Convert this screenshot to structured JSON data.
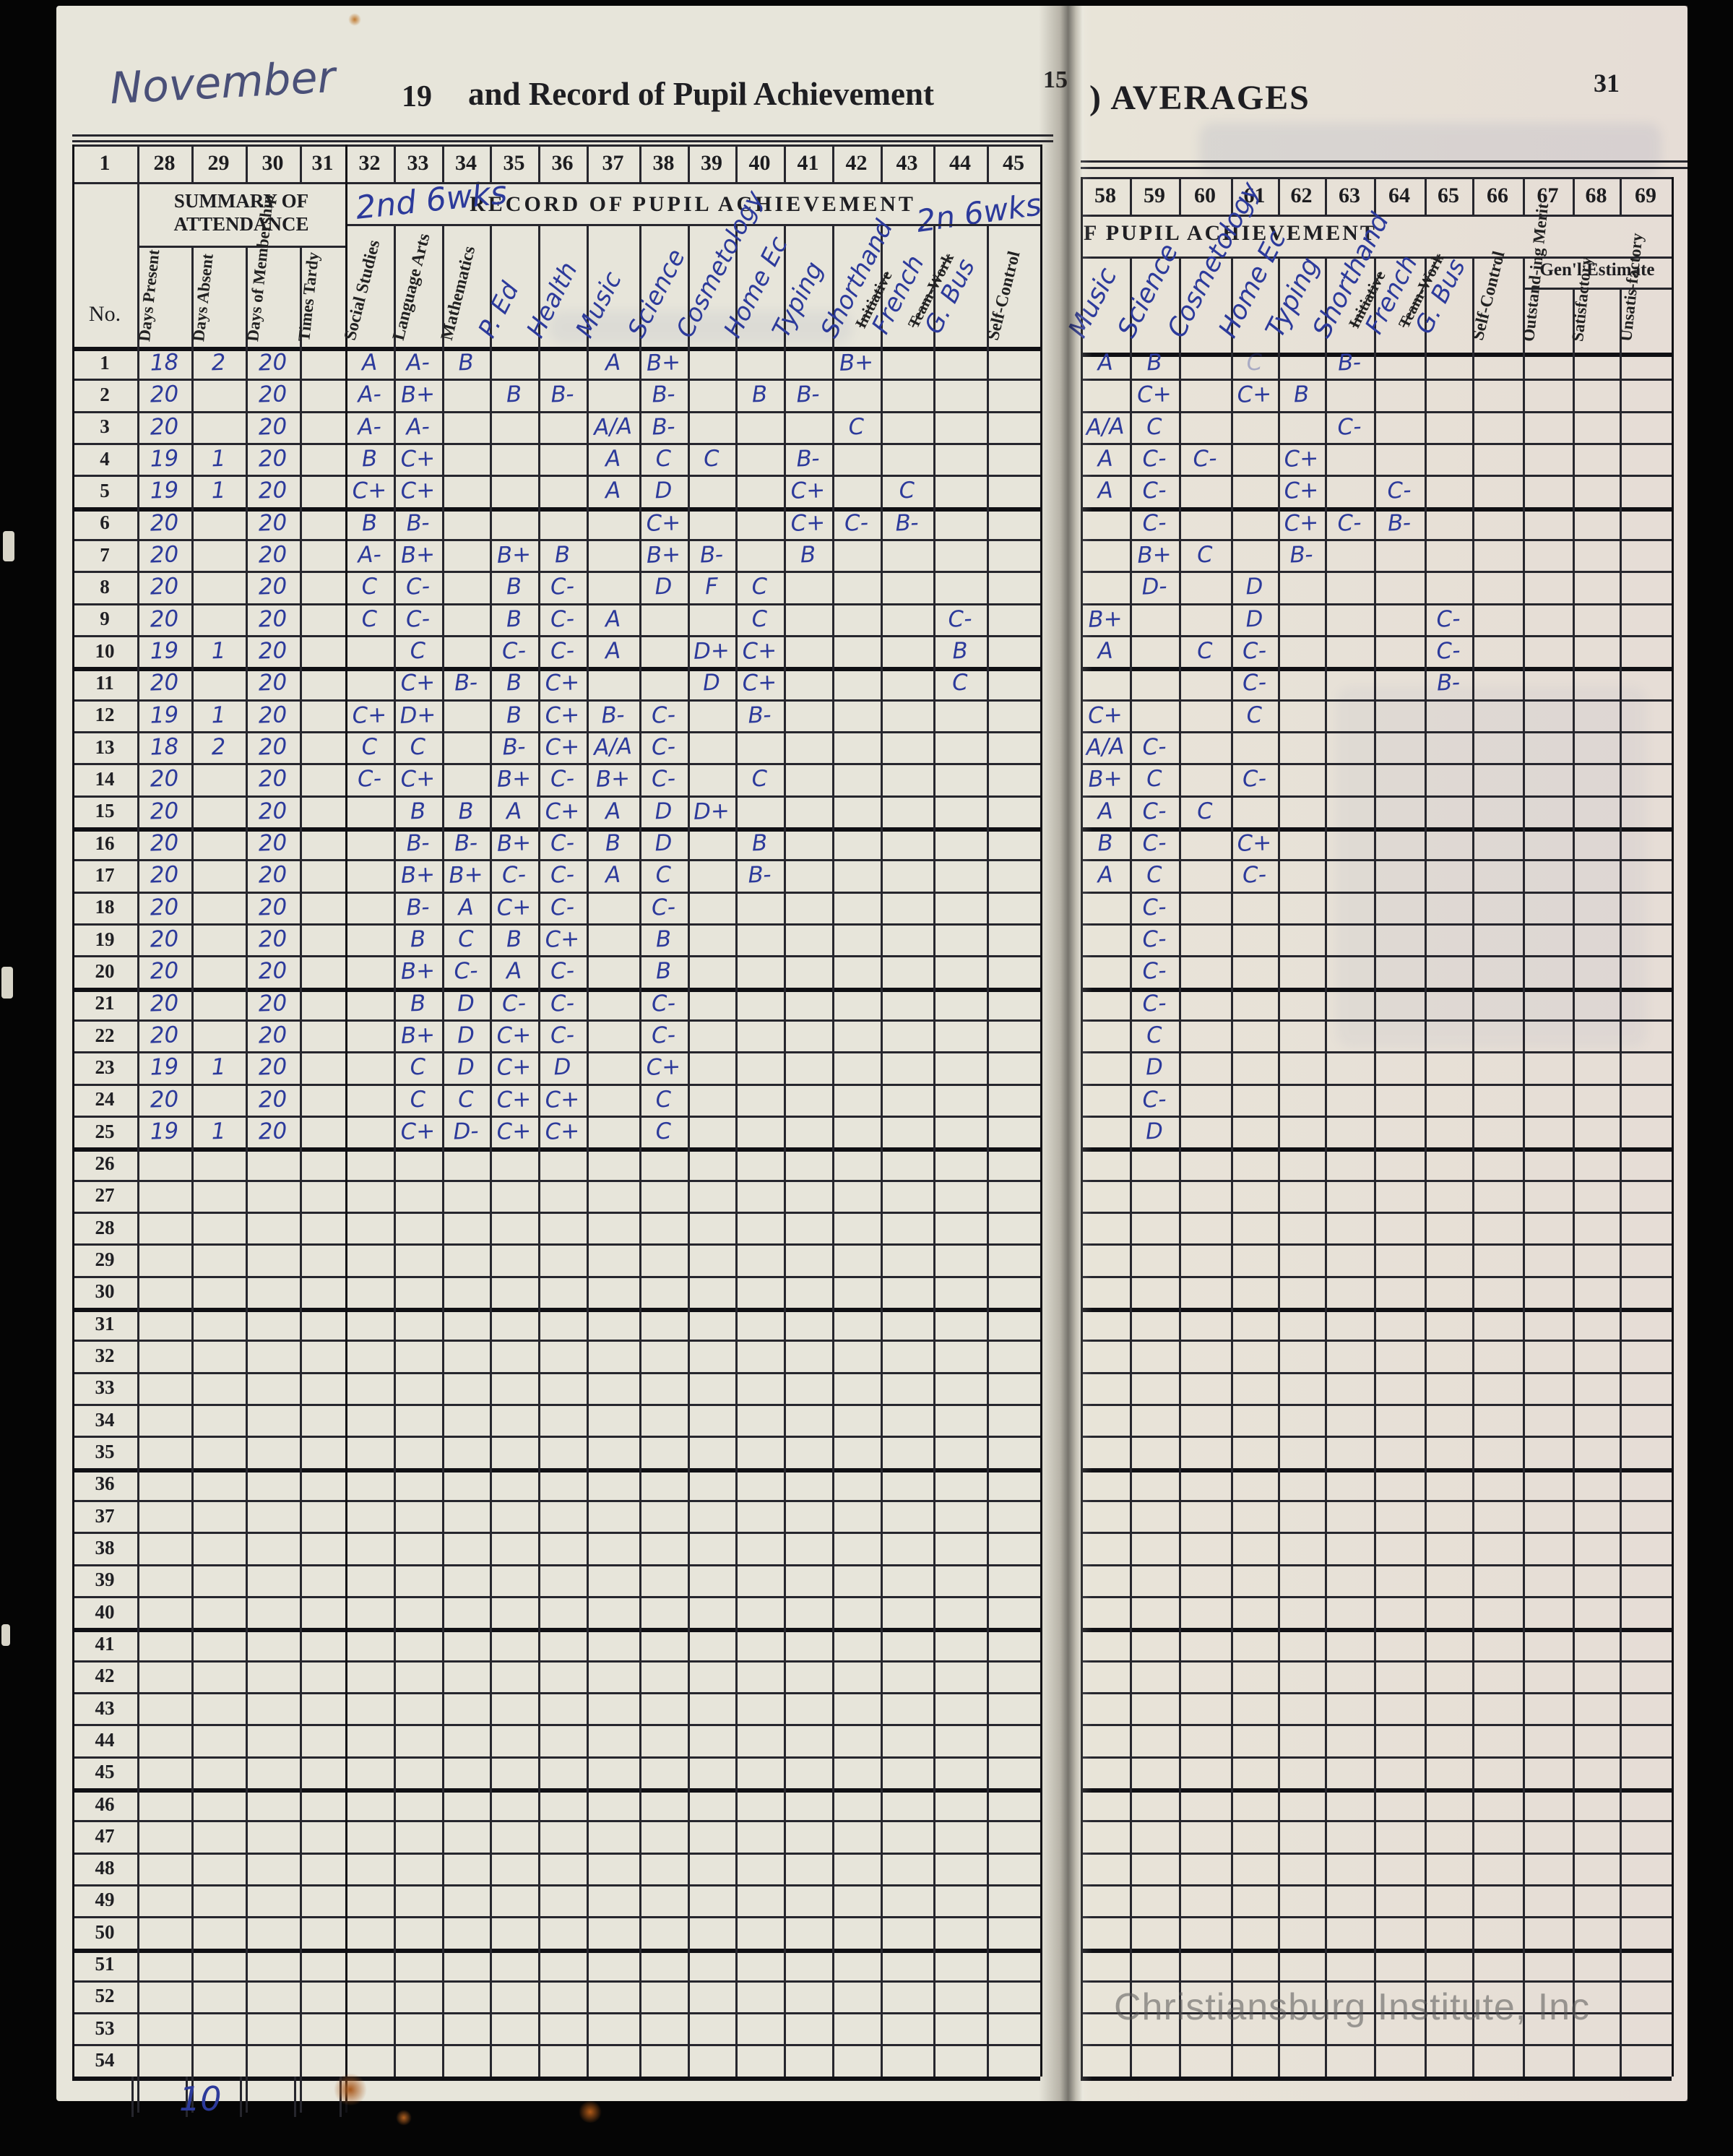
{
  "header": {
    "month": "November",
    "year_prefix": "19",
    "left_title": "and Record of Pupil Achievement",
    "left_page_corner": "15",
    "right_title": ") AVERAGES",
    "right_page_number": "31"
  },
  "left_table": {
    "column_numbers": [
      "1",
      "28",
      "29",
      "30",
      "31",
      "32",
      "33",
      "34",
      "35",
      "36",
      "37",
      "38",
      "39",
      "40",
      "41",
      "42",
      "43",
      "44",
      "45"
    ],
    "no_label": "No.",
    "attendance": {
      "title": "SUMMARY OF ATTENDANCE",
      "columns": [
        "Days Present",
        "Days Absent",
        "Days of Membership",
        "Times Tardy"
      ]
    },
    "record_title": "RECORD OF PUPIL ACHIEVEMENT",
    "term_note_left": "2nd 6wks",
    "term_note_right": "2n 6wks",
    "subjects": [
      {
        "key": "ss",
        "label": "Social Studies",
        "type": "printed"
      },
      {
        "key": "la",
        "label": "Language Arts",
        "type": "printed"
      },
      {
        "key": "ma",
        "label": "Mathematics",
        "type": "printed"
      },
      {
        "key": "pe",
        "label": "P. Ed",
        "type": "handwritten"
      },
      {
        "key": "hl",
        "label": "Health",
        "type": "handwritten"
      },
      {
        "key": "mu",
        "label": "Music",
        "type": "handwritten"
      },
      {
        "key": "sc",
        "label": "Science",
        "type": "handwritten"
      },
      {
        "key": "co",
        "label": "Cosmetology",
        "type": "handwritten"
      },
      {
        "key": "ho",
        "label": "Home Ec",
        "type": "handwritten"
      },
      {
        "key": "ty",
        "label": "Typing",
        "type": "handwritten"
      },
      {
        "key": "sh",
        "label": "Shorthand",
        "type": "handwritten"
      },
      {
        "key": "fr",
        "label": "French",
        "type": "handwritten",
        "printed_struck": "Initiative"
      },
      {
        "key": "gb",
        "label": "G. Bus",
        "type": "handwritten",
        "printed_struck": "Team-Work"
      },
      {
        "key": "sl",
        "label": "Self-Control",
        "type": "printed"
      }
    ]
  },
  "right_table": {
    "column_numbers": [
      "58",
      "59",
      "60",
      "61",
      "62",
      "63",
      "64",
      "65",
      "66",
      "67",
      "68",
      "69"
    ],
    "record_title": "F PUPIL ACHIEVEMENT",
    "subjects": [
      {
        "key": "mu",
        "label": "Music",
        "type": "handwritten"
      },
      {
        "key": "sc",
        "label": "Science",
        "type": "handwritten"
      },
      {
        "key": "co",
        "label": "Cosmetology",
        "type": "handwritten"
      },
      {
        "key": "ho",
        "label": "Home Ec",
        "type": "handwritten"
      },
      {
        "key": "ty",
        "label": "Typing",
        "type": "handwritten"
      },
      {
        "key": "sh",
        "label": "Shorthand",
        "type": "handwritten"
      },
      {
        "key": "fr",
        "label": "French",
        "type": "handwritten",
        "printed_struck": "Initiative"
      },
      {
        "key": "gb",
        "label": "G. Bus",
        "type": "handwritten",
        "printed_struck": "Team-Work"
      },
      {
        "key": "sl",
        "label": "Self-Control",
        "type": "printed"
      }
    ],
    "general_estimate": {
      "title": "Gen'l Estimate",
      "columns": [
        "Outstand-ing Merit",
        "Satisfactory",
        "Unsatis-factory"
      ]
    }
  },
  "rows": [
    {
      "n": "1",
      "p": "18",
      "a": "2",
      "m": "20",
      "t": "",
      "L": {
        "ss": "A",
        "la": "A-",
        "ma": "B",
        "mu": "A",
        "sc": "B+",
        "sh": "B+"
      },
      "R": {
        "mu": "A",
        "sc": "B",
        "sh": "B-"
      },
      "Rf": {
        "ho": "C"
      }
    },
    {
      "n": "2",
      "p": "20",
      "a": "",
      "m": "20",
      "t": "",
      "L": {
        "ss": "A-",
        "la": "B+",
        "pe": "B",
        "hl": "B-",
        "sc": "B-",
        "ho": "B",
        "ty": "B-"
      },
      "R": {
        "sc": "C+",
        "ho": "C+",
        "ty": "B"
      }
    },
    {
      "n": "3",
      "p": "20",
      "a": "",
      "m": "20",
      "t": "",
      "L": {
        "ss": "A-",
        "la": "A-",
        "mu": "A/A",
        "sc": "B-",
        "sh": "C"
      },
      "R": {
        "mu": "A/A",
        "sc": "C",
        "sh": "C-"
      }
    },
    {
      "n": "4",
      "p": "19",
      "a": "1",
      "m": "20",
      "t": "",
      "L": {
        "ss": "B",
        "la": "C+",
        "mu": "A",
        "sc": "C",
        "co": "C",
        "ty": "B-"
      },
      "R": {
        "mu": "A",
        "sc": "C-",
        "co": "C-",
        "ty": "C+"
      }
    },
    {
      "n": "5",
      "p": "19",
      "a": "1",
      "m": "20",
      "t": "",
      "L": {
        "ss": "C+",
        "la": "C+",
        "mu": "A",
        "sc": "D",
        "ty": "C+",
        "fr": "C"
      },
      "R": {
        "mu": "A",
        "sc": "C-",
        "ty": "C+",
        "fr": "C-"
      }
    },
    {
      "n": "6",
      "p": "20",
      "a": "",
      "m": "20",
      "t": "",
      "L": {
        "ss": "B",
        "la": "B-",
        "sc": "C+",
        "ty": "C+",
        "sh": "C-",
        "fr": "B-"
      },
      "R": {
        "sc": "C-",
        "ty": "C+",
        "sh": "C-",
        "fr": "B-"
      }
    },
    {
      "n": "7",
      "p": "20",
      "a": "",
      "m": "20",
      "t": "",
      "L": {
        "ss": "A-",
        "la": "B+",
        "pe": "B+",
        "hl": "B",
        "sc": "B+",
        "co": "B-",
        "ty": "B"
      },
      "R": {
        "sc": "B+",
        "co": "C",
        "ty": "B-"
      }
    },
    {
      "n": "8",
      "p": "20",
      "a": "",
      "m": "20",
      "t": "",
      "L": {
        "ss": "C",
        "la": "C-",
        "pe": "B",
        "hl": "C-",
        "sc": "D",
        "co": "F",
        "ho": "C"
      },
      "R": {
        "sc": "D-",
        "ho": "D"
      }
    },
    {
      "n": "9",
      "p": "20",
      "a": "",
      "m": "20",
      "t": "",
      "L": {
        "ss": "C",
        "la": "C-",
        "pe": "B",
        "hl": "C-",
        "mu": "A",
        "ho": "C",
        "gb": "C-"
      },
      "R": {
        "mu": "B+",
        "ho": "D",
        "gb": "C-"
      }
    },
    {
      "n": "10",
      "p": "19",
      "a": "1",
      "m": "20",
      "t": "",
      "L": {
        "la": "C",
        "pe": "C-",
        "hl": "C-",
        "mu": "A",
        "co": "D+",
        "ho": "C+",
        "gb": "B"
      },
      "R": {
        "mu": "A",
        "co": "C",
        "ho": "C-",
        "gb": "C-"
      }
    },
    {
      "n": "11",
      "p": "20",
      "a": "",
      "m": "20",
      "t": "",
      "L": {
        "la": "C+",
        "ma": "B-",
        "pe": "B",
        "hl": "C+",
        "co": "D",
        "ho": "C+",
        "gb": "C"
      },
      "R": {
        "ho": "C-",
        "gb": "B-"
      }
    },
    {
      "n": "12",
      "p": "19",
      "a": "1",
      "m": "20",
      "t": "",
      "L": {
        "ss": "C+",
        "la": "D+",
        "pe": "B",
        "hl": "C+",
        "mu": "B-",
        "sc": "C-",
        "ho": "B-"
      },
      "R": {
        "mu": "C+",
        "ho": "C"
      }
    },
    {
      "n": "13",
      "p": "18",
      "a": "2",
      "m": "20",
      "t": "",
      "L": {
        "ss": "C",
        "la": "C",
        "pe": "B-",
        "hl": "C+",
        "mu": "A/A",
        "sc": "C-"
      },
      "R": {
        "mu": "A/A",
        "sc": "C-"
      }
    },
    {
      "n": "14",
      "p": "20",
      "a": "",
      "m": "20",
      "t": "",
      "L": {
        "ss": "C-",
        "la": "C+",
        "pe": "B+",
        "hl": "C-",
        "mu": "B+",
        "sc": "C-",
        "ho": "C"
      },
      "R": {
        "mu": "B+",
        "sc": "C",
        "ho": "C-"
      }
    },
    {
      "n": "15",
      "p": "20",
      "a": "",
      "m": "20",
      "t": "",
      "L": {
        "la": "B",
        "ma": "B",
        "pe": "A",
        "hl": "C+",
        "mu": "A",
        "sc": "D",
        "co": "D+"
      },
      "R": {
        "mu": "A",
        "sc": "C-",
        "co": "C"
      }
    },
    {
      "n": "16",
      "p": "20",
      "a": "",
      "m": "20",
      "t": "",
      "L": {
        "la": "B-",
        "ma": "B-",
        "pe": "B+",
        "hl": "C-",
        "mu": "B",
        "sc": "D",
        "ho": "B"
      },
      "R": {
        "mu": "B",
        "sc": "C-",
        "ho": "C+"
      }
    },
    {
      "n": "17",
      "p": "20",
      "a": "",
      "m": "20",
      "t": "",
      "L": {
        "la": "B+",
        "ma": "B+",
        "pe": "C-",
        "hl": "C-",
        "mu": "A",
        "sc": "C",
        "ho": "B-"
      },
      "R": {
        "mu": "A",
        "sc": "C",
        "ho": "C-"
      }
    },
    {
      "n": "18",
      "p": "20",
      "a": "",
      "m": "20",
      "t": "",
      "L": {
        "la": "B-",
        "ma": "A",
        "pe": "C+",
        "hl": "C-",
        "sc": "C-"
      },
      "R": {
        "sc": "C-"
      }
    },
    {
      "n": "19",
      "p": "20",
      "a": "",
      "m": "20",
      "t": "",
      "L": {
        "la": "B",
        "ma": "C",
        "pe": "B",
        "hl": "C+",
        "sc": "B"
      },
      "R": {
        "sc": "C-"
      }
    },
    {
      "n": "20",
      "p": "20",
      "a": "",
      "m": "20",
      "t": "",
      "L": {
        "la": "B+",
        "ma": "C-",
        "pe": "A",
        "hl": "C-",
        "sc": "B"
      },
      "R": {
        "sc": "C-"
      }
    },
    {
      "n": "21",
      "p": "20",
      "a": "",
      "m": "20",
      "t": "",
      "L": {
        "la": "B",
        "ma": "D",
        "pe": "C-",
        "hl": "C-",
        "sc": "C-"
      },
      "R": {
        "sc": "C-"
      }
    },
    {
      "n": "22",
      "p": "20",
      "a": "",
      "m": "20",
      "t": "",
      "L": {
        "la": "B+",
        "ma": "D",
        "pe": "C+",
        "hl": "C-",
        "sc": "C-"
      },
      "R": {
        "sc": "C"
      }
    },
    {
      "n": "23",
      "p": "19",
      "a": "1",
      "m": "20",
      "t": "",
      "L": {
        "la": "C",
        "ma": "D",
        "pe": "C+",
        "hl": "D",
        "sc": "C+"
      },
      "R": {
        "sc": "D"
      }
    },
    {
      "n": "24",
      "p": "20",
      "a": "",
      "m": "20",
      "t": "",
      "L": {
        "la": "C",
        "ma": "C",
        "pe": "C+",
        "hl": "C+",
        "sc": "C"
      },
      "R": {
        "sc": "C-"
      }
    },
    {
      "n": "25",
      "p": "19",
      "a": "1",
      "m": "20",
      "t": "",
      "L": {
        "la": "C+",
        "ma": "D-",
        "pe": "C+",
        "hl": "C+",
        "sc": "C"
      },
      "R": {
        "sc": "D"
      }
    },
    {
      "n": "26"
    },
    {
      "n": "27"
    },
    {
      "n": "28"
    },
    {
      "n": "29"
    },
    {
      "n": "30"
    },
    {
      "n": "31"
    },
    {
      "n": "32"
    },
    {
      "n": "33"
    },
    {
      "n": "34"
    },
    {
      "n": "35"
    },
    {
      "n": "36"
    },
    {
      "n": "37"
    },
    {
      "n": "38"
    },
    {
      "n": "39"
    },
    {
      "n": "40"
    },
    {
      "n": "41"
    },
    {
      "n": "42"
    },
    {
      "n": "43"
    },
    {
      "n": "44"
    },
    {
      "n": "45"
    },
    {
      "n": "46"
    },
    {
      "n": "47"
    },
    {
      "n": "48"
    },
    {
      "n": "49"
    },
    {
      "n": "50"
    },
    {
      "n": "51"
    },
    {
      "n": "52"
    },
    {
      "n": "53"
    },
    {
      "n": "54"
    }
  ],
  "footer": {
    "stray_mark": "10",
    "watermark": "Christiansburg Institute, Inc"
  }
}
